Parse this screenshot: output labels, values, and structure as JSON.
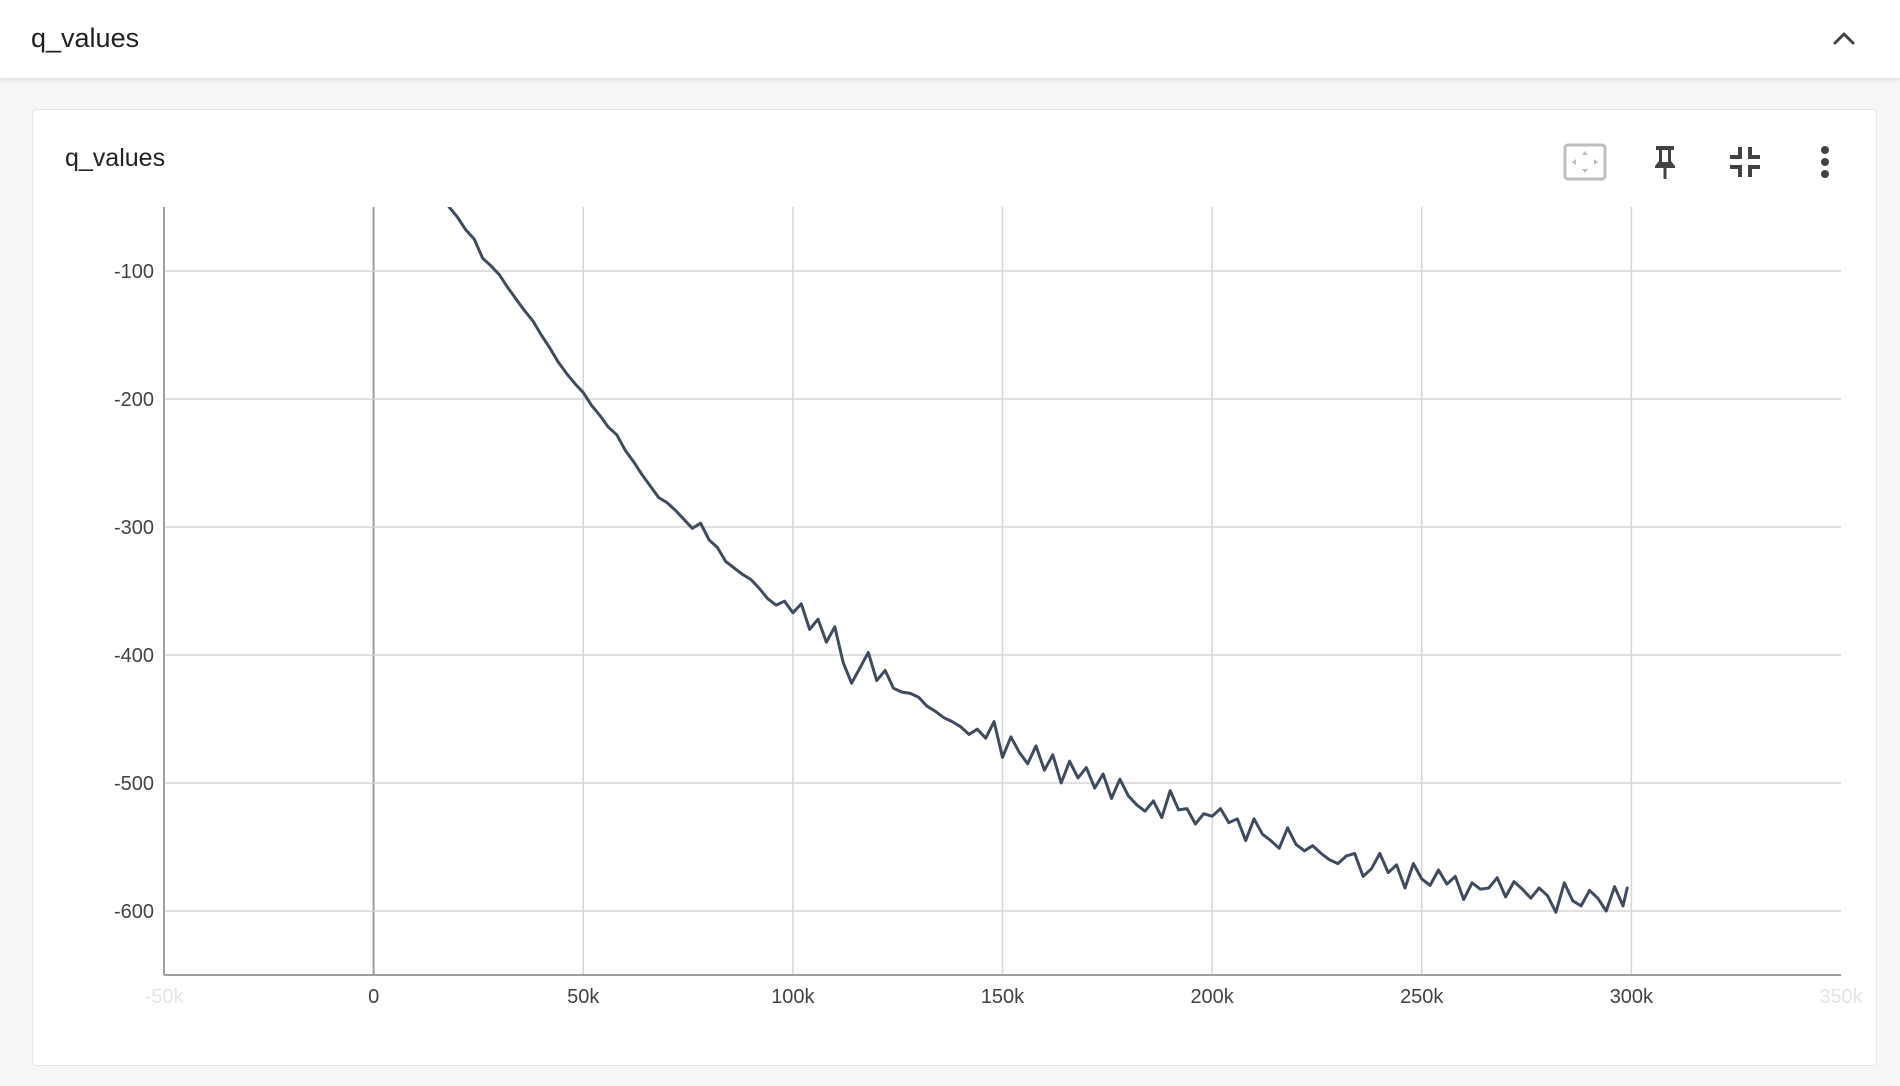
{
  "section": {
    "title": "q_values",
    "collapse_icon": "chevron-up-icon"
  },
  "card": {
    "title": "q_values",
    "toolbar": {
      "fit_icon": "fit-to-data-icon",
      "pin_icon": "pin-icon",
      "minimize_icon": "minimize-icon",
      "more_icon": "more-vert-icon"
    }
  },
  "colors": {
    "line": "#3f4b5e",
    "grid": "#d6d6d6",
    "axis": "#9e9e9e"
  },
  "chart_data": {
    "type": "line",
    "title": "",
    "xlabel": "",
    "ylabel": "",
    "xlim": [
      -50000,
      350000
    ],
    "ylim": [
      -650,
      -50
    ],
    "x_ticks": [
      -50000,
      0,
      50000,
      100000,
      150000,
      200000,
      250000,
      300000,
      350000
    ],
    "x_tick_labels": [
      "-50k",
      "0",
      "50k",
      "100k",
      "150k",
      "200k",
      "250k",
      "300k",
      "350k"
    ],
    "y_ticks": [
      -100,
      -200,
      -300,
      -400,
      -500,
      -600
    ],
    "y_tick_labels": [
      "-100",
      "-200",
      "-300",
      "-400",
      "-500",
      "-600"
    ],
    "grid": true,
    "series": [
      {
        "x": [
          18000,
          20000,
          22000,
          24000,
          26000,
          28000,
          30000,
          32000,
          34000,
          36000,
          38000,
          40000,
          42000,
          44000,
          46000,
          48000,
          50000,
          52000,
          54000,
          56000,
          58000,
          60000,
          62000,
          64000,
          66000,
          68000,
          70000,
          72000,
          74000,
          76000,
          78000,
          80000,
          82000,
          84000,
          86000,
          88000,
          90000,
          92000,
          94000,
          96000,
          98000,
          100000,
          102000,
          104000,
          106000,
          108000,
          110000,
          112000,
          114000,
          116000,
          118000,
          120000,
          122000,
          124000,
          126000,
          128000,
          130000,
          132000,
          134000,
          136000,
          138000,
          140000,
          142000,
          144000,
          146000,
          148000,
          150000,
          152000,
          154000,
          156000,
          158000,
          160000,
          162000,
          164000,
          166000,
          168000,
          170000,
          172000,
          174000,
          176000,
          178000,
          180000,
          182000,
          184000,
          186000,
          188000,
          190000,
          192000,
          194000,
          196000,
          198000,
          200000,
          202000,
          204000,
          206000,
          208000,
          210000,
          212000,
          214000,
          216000,
          218000,
          220000,
          222000,
          224000,
          226000,
          228000,
          230000,
          232000,
          234000,
          236000,
          238000,
          240000,
          242000,
          244000,
          246000,
          248000,
          250000,
          252000,
          254000,
          256000,
          258000,
          260000,
          262000,
          264000,
          266000,
          268000,
          270000,
          272000,
          274000,
          276000,
          278000,
          280000,
          282000,
          284000,
          286000,
          288000,
          290000,
          292000,
          294000,
          296000,
          298000,
          299000
        ],
        "y": [
          -50,
          -58,
          -68,
          -75,
          -90,
          -96,
          -103,
          -113,
          -122,
          -131,
          -139,
          -150,
          -160,
          -171,
          -180,
          -188,
          -195,
          -205,
          -213,
          -222,
          -228,
          -240,
          -249,
          -259,
          -268,
          -277,
          -281,
          -287,
          -294,
          -301,
          -297,
          -310,
          -316,
          -327,
          -332,
          -337,
          -341,
          -348,
          -356,
          -361,
          -358,
          -367,
          -360,
          -380,
          -372,
          -390,
          -378,
          -406,
          -422,
          -410,
          -398,
          -420,
          -412,
          -426,
          -429,
          -430,
          -433,
          -440,
          -444,
          -449,
          -452,
          -456,
          -462,
          -458,
          -465,
          -452,
          -480,
          -464,
          -476,
          -485,
          -471,
          -490,
          -478,
          -500,
          -483,
          -496,
          -488,
          -504,
          -493,
          -512,
          -497,
          -510,
          -517,
          -522,
          -514,
          -527,
          -506,
          -521,
          -520,
          -532,
          -524,
          -526,
          -520,
          -531,
          -528,
          -545,
          -528,
          -540,
          -545,
          -551,
          -535,
          -548,
          -553,
          -549,
          -555,
          -560,
          -563,
          -557,
          -555,
          -573,
          -567,
          -555,
          -570,
          -564,
          -582,
          -563,
          -575,
          -580,
          -568,
          -579,
          -573,
          -591,
          -578,
          -583,
          -582,
          -574,
          -589,
          -577,
          -583,
          -590,
          -582,
          -588,
          -601,
          -578,
          -592,
          -596,
          -584,
          -590,
          -600,
          -581,
          -596,
          -582
        ],
        "name": ""
      }
    ]
  }
}
